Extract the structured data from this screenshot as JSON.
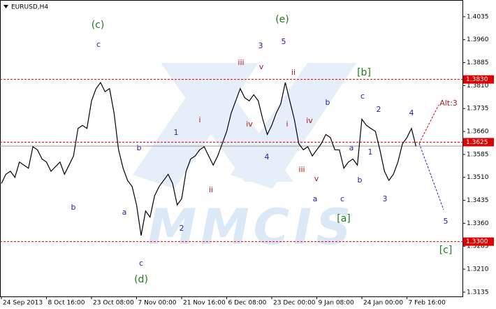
{
  "chart_data": {
    "type": "line",
    "title": "EURUSD,H4",
    "watermark": "MMCIS",
    "categories": [
      "24 Sep 2013",
      null,
      null,
      null,
      null,
      null,
      null,
      null,
      null,
      null,
      "8 Oct 16:00",
      null,
      null,
      null,
      null,
      null,
      null,
      null,
      null,
      null,
      "23 Oct 08:00",
      null,
      null,
      null,
      null,
      null,
      null,
      null,
      null,
      null,
      "7 Nov 00:00",
      null,
      null,
      null,
      null,
      null,
      null,
      null,
      null,
      null,
      "21 Nov 16:00",
      null,
      null,
      null,
      null,
      null,
      null,
      null,
      null,
      null,
      "6 Dec 08:00",
      null,
      null,
      null,
      null,
      null,
      null,
      null,
      null,
      null,
      "23 Dec 00:00",
      null,
      null,
      null,
      null,
      null,
      null,
      null,
      null,
      null,
      "9 Jan 08:00",
      null,
      null,
      null,
      null,
      null,
      null,
      null,
      null,
      null,
      "24 Jan 00:00",
      null,
      null,
      null,
      null,
      null,
      null,
      null,
      null,
      null,
      "7 Feb 16:00",
      null,
      null
    ],
    "series": [
      {
        "name": "EURUSD",
        "color": "#000000",
        "values": [
          1.349,
          1.352,
          1.353,
          1.351,
          1.356,
          1.355,
          1.354,
          1.361,
          1.36,
          1.357,
          1.356,
          1.353,
          1.3545,
          1.356,
          1.352,
          1.355,
          1.358,
          1.367,
          1.368,
          1.367,
          1.376,
          1.38,
          1.382,
          1.379,
          1.38,
          1.372,
          1.36,
          1.354,
          1.35,
          1.348,
          1.342,
          1.332,
          1.34,
          1.338,
          1.345,
          1.348,
          1.35,
          1.352,
          1.349,
          1.342,
          1.344,
          1.353,
          1.357,
          1.358,
          1.36,
          1.361,
          1.358,
          1.355,
          1.358,
          1.362,
          1.366,
          1.372,
          1.376,
          1.38,
          1.377,
          1.376,
          1.378,
          1.376,
          1.37,
          1.365,
          1.368,
          1.372,
          1.375,
          1.382,
          1.376,
          1.37,
          1.362,
          1.36,
          1.361,
          1.358,
          1.36,
          1.362,
          1.365,
          1.364,
          1.36,
          1.36,
          1.354,
          1.356,
          1.357,
          1.355,
          1.37,
          1.368,
          1.367,
          1.366,
          1.36,
          1.353,
          1.35,
          1.352,
          1.356,
          1.362,
          1.364,
          1.367,
          1.3612
        ]
      }
    ],
    "ylim": [
      1.3121,
      1.4085
    ],
    "yticks": [
      1.4035,
      {
        "value": 1.396,
        "label": "1.3960"
      },
      1.3885,
      {
        "value": 1.381,
        "label": "1.3810"
      },
      1.3735,
      {
        "value": 1.366,
        "label": "1.3660"
      },
      1.3585,
      {
        "value": 1.351,
        "label": "1.3510"
      },
      1.3435,
      {
        "value": 1.336,
        "label": "1.3360"
      },
      1.3285,
      {
        "value": 1.321,
        "label": "1.3210"
      },
      1.3135
    ],
    "levels": {
      "values": [
        1.383,
        1.3625,
        1.33
      ],
      "value_labels": [
        "1.3830",
        "1.3625",
        "1.3300"
      ],
      "color": "#dd0000"
    },
    "annotations": [
      "(c)",
      "(e)",
      "[b]",
      "[a]",
      "(d)",
      "[c]",
      "c",
      "3",
      "5",
      "b",
      "a",
      "c",
      "b",
      "1",
      "2",
      "4",
      "b",
      "c",
      "2",
      "4",
      "a",
      "c",
      "b",
      "a",
      "1",
      "3",
      "5",
      "iii",
      "v",
      "ii",
      "i",
      "ii",
      "iv",
      "i",
      "iv",
      "iii",
      "v",
      "Alt:3"
    ]
  }
}
